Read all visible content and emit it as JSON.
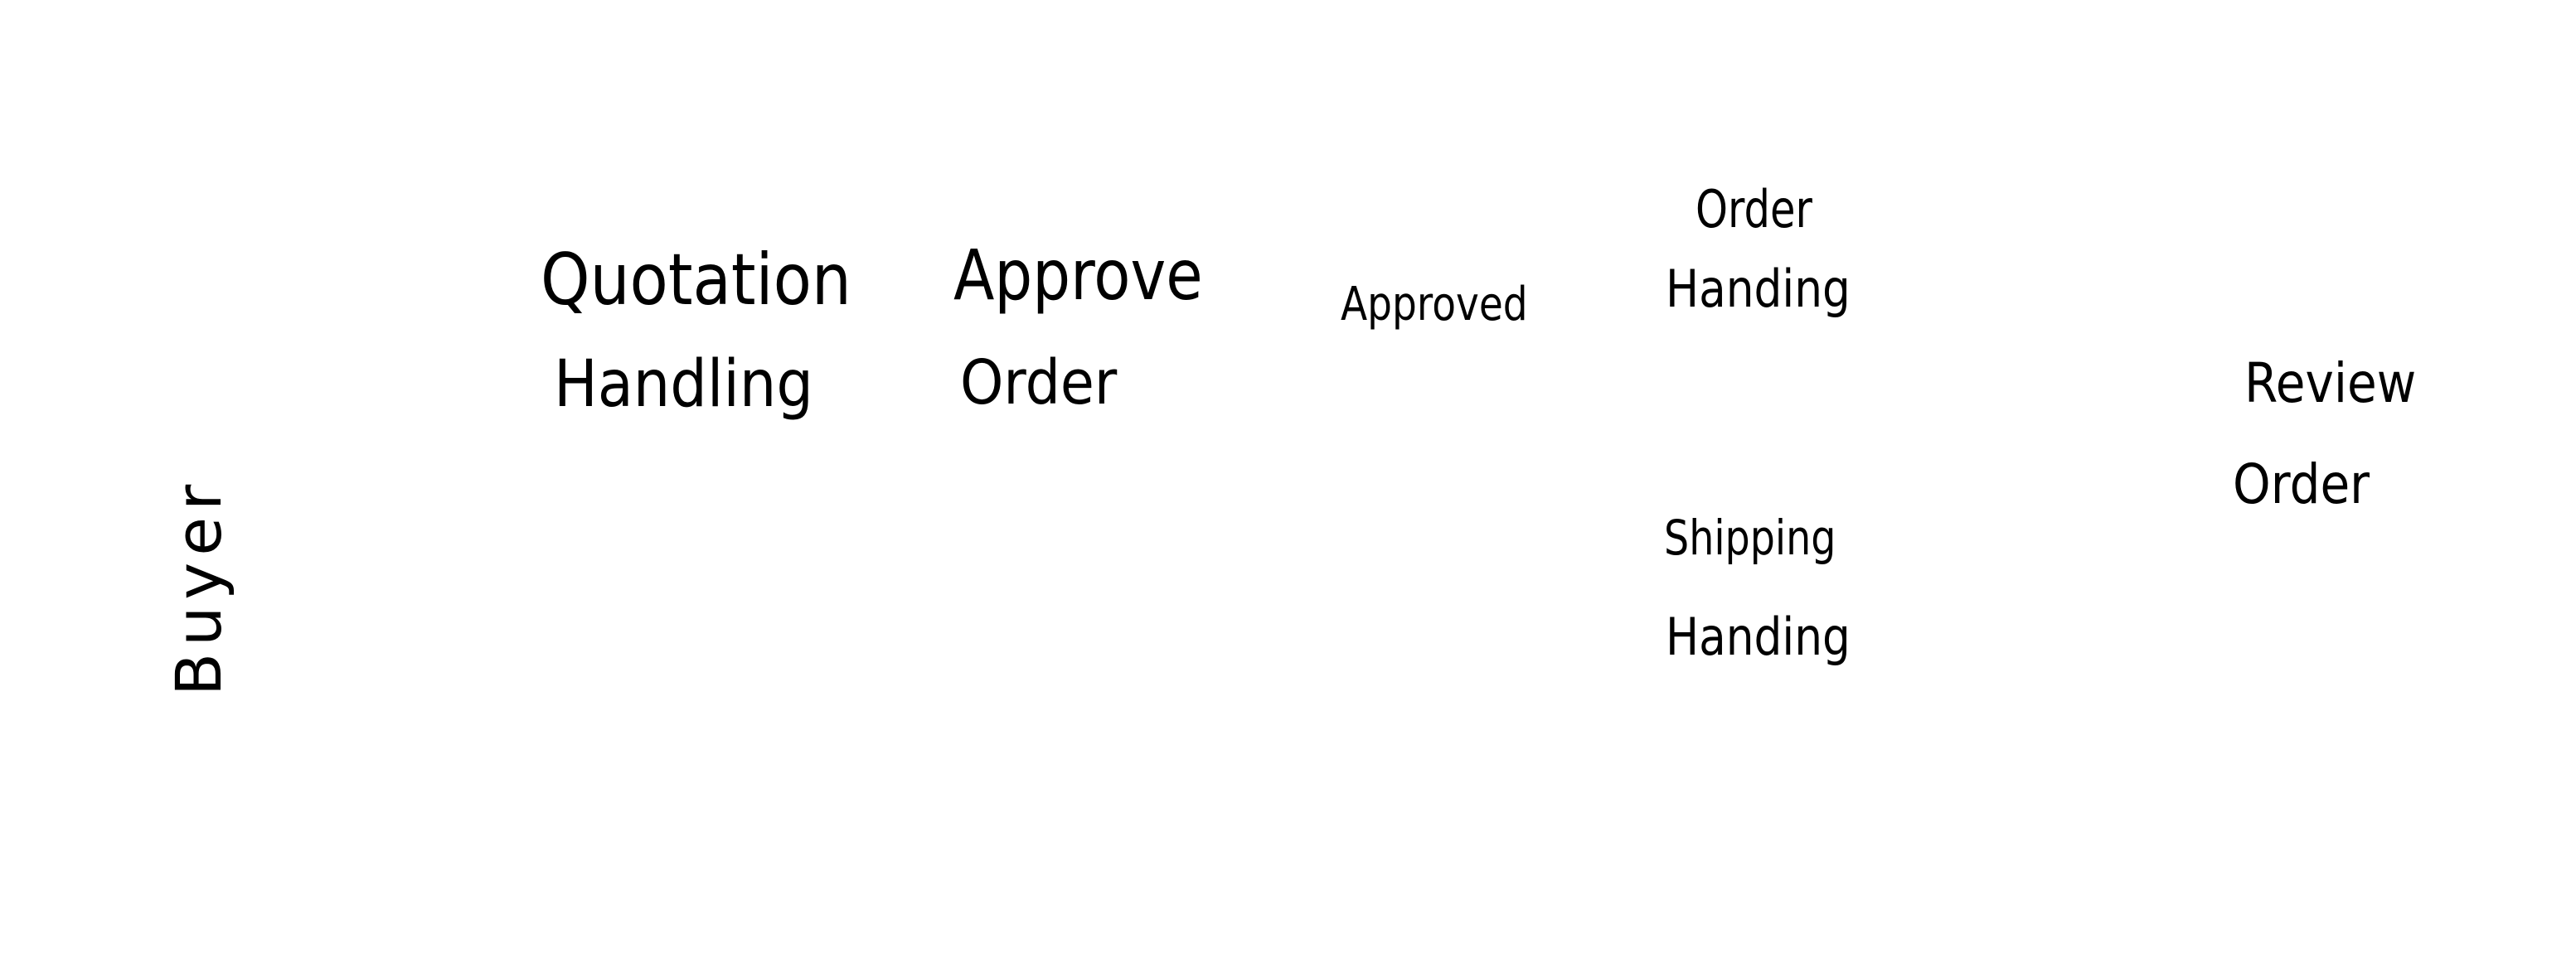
{
  "lane": {
    "label": "Buyer"
  },
  "nodes": {
    "quotation_handling": {
      "line1": "Quotation",
      "line2": "Handling"
    },
    "approve_order": {
      "line1": "Approve",
      "line2": "Order"
    },
    "approved": {
      "label": "Approved"
    },
    "order_handling": {
      "line1": "Order",
      "line2": "Handing"
    },
    "shipping_handling": {
      "line1": "Shipping",
      "line2": "Handing"
    },
    "review_order": {
      "line1": "Review",
      "line2": "Order"
    }
  },
  "colors": {
    "background": "#ffffff",
    "ink": "#000000"
  }
}
